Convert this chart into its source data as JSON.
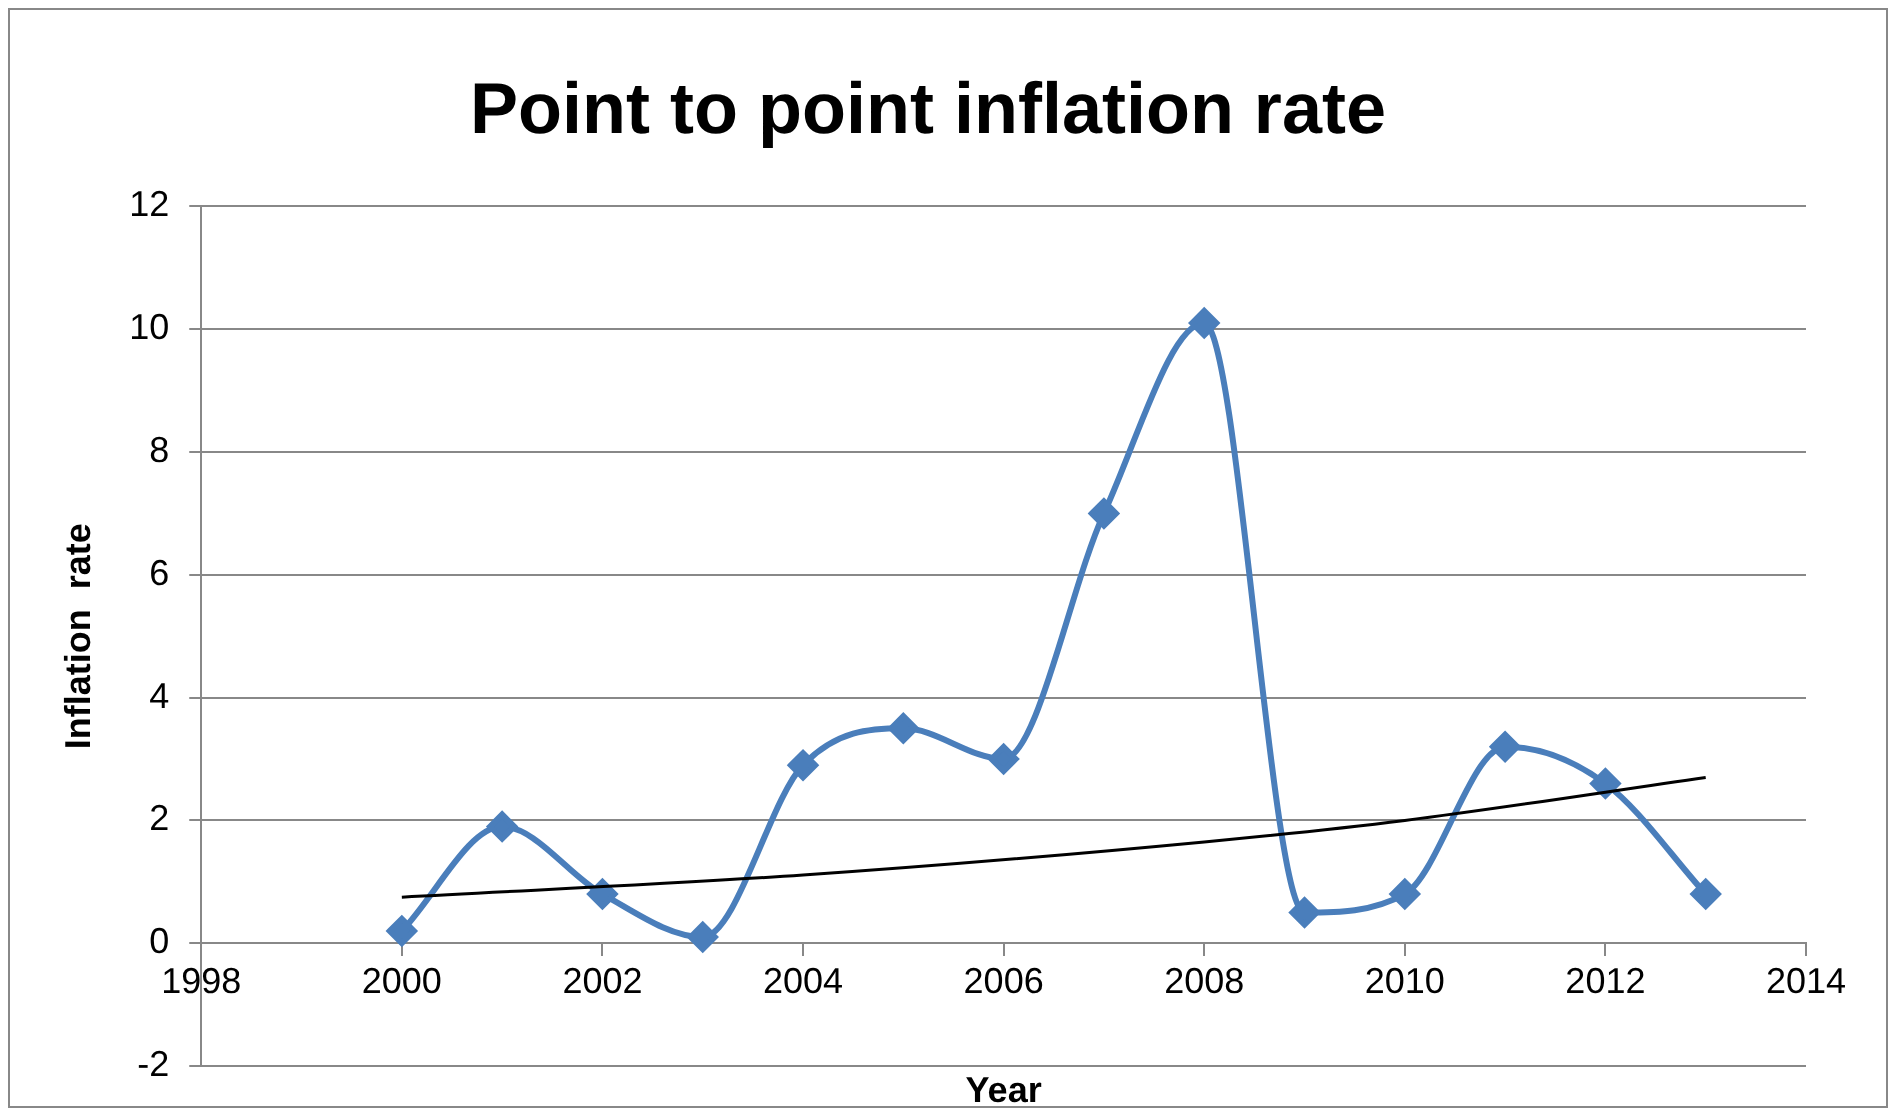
{
  "chart_data": {
    "type": "line",
    "title": "Point to point inflation rate",
    "xlabel": "Year",
    "ylabel": "Inflation  rate",
    "x": [
      2000,
      2001,
      2002,
      2003,
      2004,
      2005,
      2006,
      2007,
      2008,
      2009,
      2010,
      2011,
      2012,
      2013
    ],
    "series": [
      {
        "color": "#4a7ebb",
        "values": [
          0.2,
          1.9,
          0.8,
          0.1,
          2.9,
          3.5,
          3.0,
          7.0,
          10.1,
          0.5,
          0.8,
          3.2,
          2.6,
          0.8
        ],
        "marker": "diamond"
      },
      {
        "type": "line",
        "color": "#000000",
        "x": [
          2000,
          2004,
          2008,
          2010,
          2013
        ],
        "values": [
          0.75,
          1.11,
          1.65,
          2.0,
          2.7
        ],
        "marker": "none"
      }
    ],
    "xlim": [
      1998,
      2014
    ],
    "xticks": [
      1998,
      2000,
      2002,
      2004,
      2006,
      2008,
      2010,
      2012,
      2014
    ],
    "ylim": [
      -2,
      12
    ],
    "yticks": [
      -2,
      0,
      2,
      4,
      6,
      8,
      10,
      12
    ],
    "grid": "y",
    "legend": false
  }
}
